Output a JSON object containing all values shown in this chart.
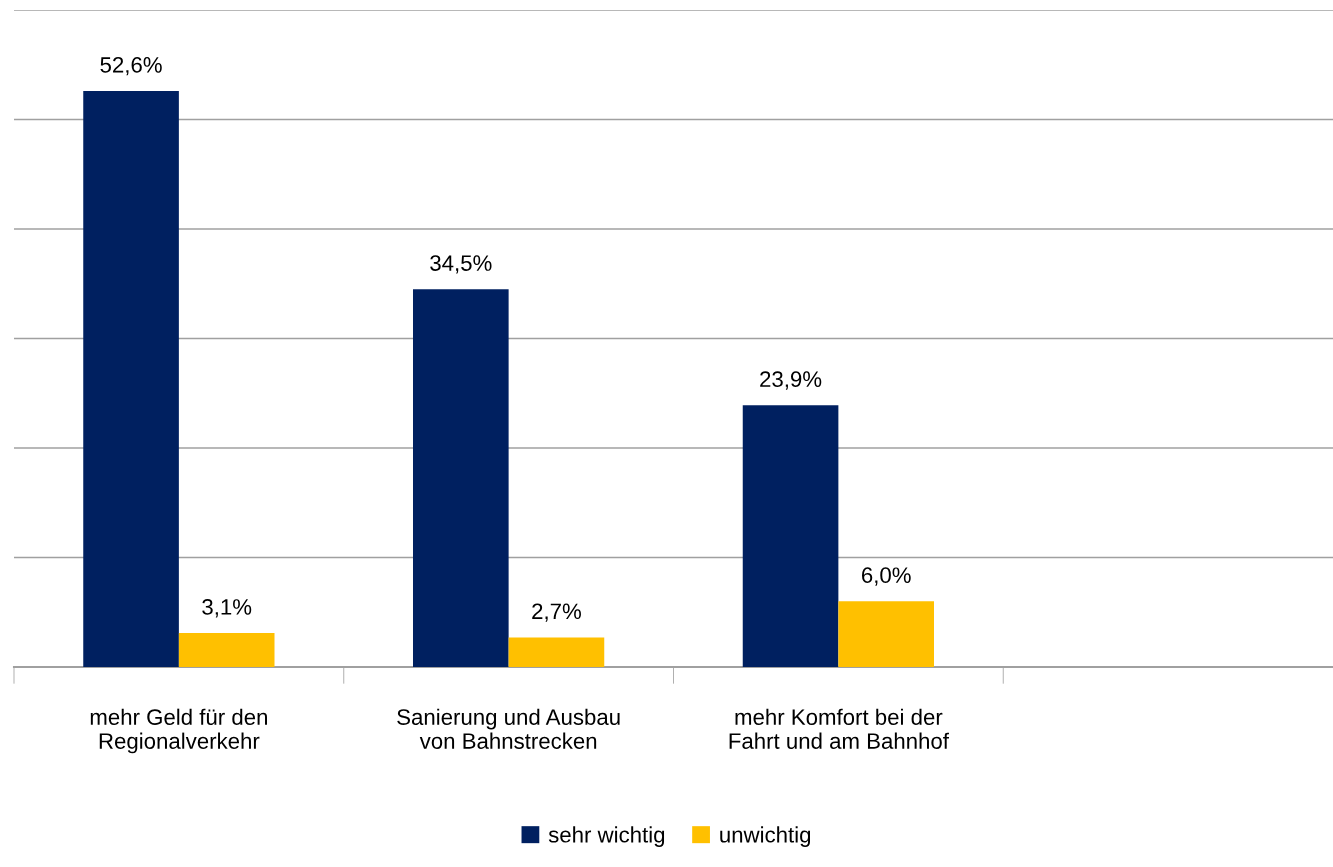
{
  "chart_data": {
    "type": "bar",
    "categories": [
      "mehr Geld für den\nRegionalverkehr",
      "Sanierung und Ausbau\nvon Bahnstrecken",
      "mehr Komfort bei der\nFahrt und am Bahnhof",
      null
    ],
    "series": [
      {
        "name": "sehr wichtig",
        "color": "#002060",
        "values": [
          52.6,
          34.5,
          23.9,
          null
        ],
        "value_labels": [
          "52,6%",
          "34,5%",
          "23,9%",
          null
        ]
      },
      {
        "name": "unwichtig",
        "color": "#ffc000",
        "values": [
          3.1,
          2.7,
          6.0,
          null
        ],
        "value_labels": [
          "3,1%",
          "2,7%",
          "6,0%",
          null
        ]
      }
    ],
    "ylim": [
      0,
      60
    ],
    "yticks": [
      {
        "value": 0,
        "label": null
      },
      {
        "value": 10,
        "label": null
      },
      {
        "value": 20,
        "label": null
      },
      {
        "value": 30,
        "label": null
      },
      {
        "value": 40,
        "label": null
      },
      {
        "value": 50,
        "label": null
      },
      {
        "value": 60,
        "label": null
      }
    ],
    "tick_labels": "x",
    "grid": "y",
    "legend": "bottom"
  }
}
